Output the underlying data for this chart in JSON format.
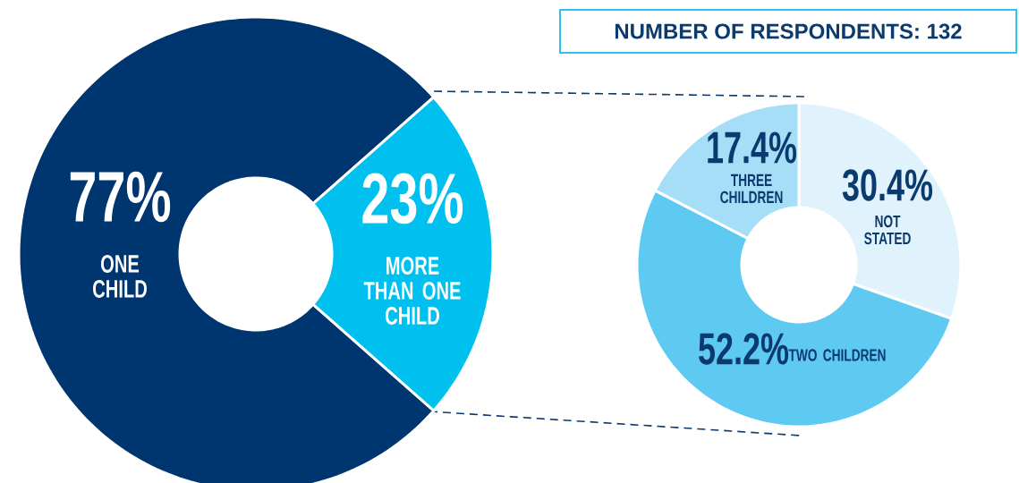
{
  "chart_data": [
    {
      "type": "donut",
      "categories": [
        "ONE CHILD",
        "MORE THAN ONE CHILD"
      ],
      "values": [
        77,
        23
      ],
      "colors": [
        "#00366f",
        "#00c0f0"
      ],
      "value_labels": [
        "77%",
        "23%"
      ],
      "annotations": [
        "NUMBER OF RESPONDENTS: 132"
      ]
    },
    {
      "type": "donut",
      "categories": [
        "NOT STATED",
        "TWO CHILDREN",
        "THREE CHILDREN"
      ],
      "values": [
        30.4,
        52.2,
        17.4
      ],
      "colors": [
        "#e0f2fc",
        "#5ecaf2",
        "#a6ddf7"
      ],
      "value_labels": [
        "30.4%",
        "52.2%",
        "17.4%"
      ]
    }
  ]
}
